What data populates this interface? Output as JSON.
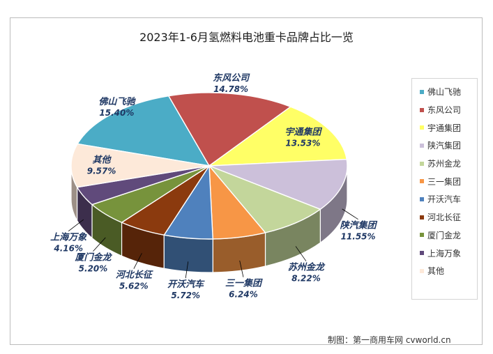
{
  "chart_data": {
    "type": "pie",
    "title": "2023年1-6月氢燃料电池重卡品牌占比一览",
    "legend_position": "right",
    "slices": [
      {
        "name": "佛山飞驰",
        "label": "15.40%",
        "value": 15.4,
        "color": "#4bacc6"
      },
      {
        "name": "东风公司",
        "label": "14.78%",
        "value": 14.78,
        "color": "#c0504d"
      },
      {
        "name": "宇通集团",
        "label": "13.53%",
        "value": 13.53,
        "color": "#ffff66"
      },
      {
        "name": "陕汽集团",
        "label": "11.55%",
        "value": 11.55,
        "color": "#ccc0da"
      },
      {
        "name": "苏州金龙",
        "label": "8.22%",
        "value": 8.22,
        "color": "#c3d69b"
      },
      {
        "name": "三一集团",
        "label": "6.24%",
        "value": 6.24,
        "color": "#f79646"
      },
      {
        "name": "开沃汽车",
        "label": "5.72%",
        "value": 5.72,
        "color": "#4f81bd"
      },
      {
        "name": "河北长征",
        "label": "5.62%",
        "value": 5.62,
        "color": "#8b3a0e"
      },
      {
        "name": "厦门金龙",
        "label": "5.20%",
        "value": 5.2,
        "color": "#77933c"
      },
      {
        "name": "上海万象",
        "label": "4.16%",
        "value": 4.16,
        "color": "#604a7b"
      },
      {
        "name": "其他",
        "label": "9.57%",
        "value": 9.57,
        "color": "#fde9d9"
      }
    ]
  },
  "credit": "制图：第一商用车网 cvworld.cn"
}
